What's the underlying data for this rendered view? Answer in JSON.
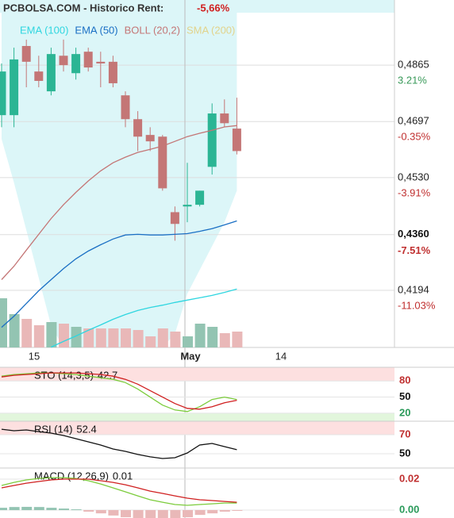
{
  "header": {
    "title": "PCBOLSA.COM - Historico Rent:",
    "rent": "-5,66%"
  },
  "chart_data": [
    {
      "type": "candlestick",
      "x_labels": [
        "15",
        "May",
        "14"
      ],
      "ylim": [
        0.4024,
        0.5059
      ],
      "yticks": [
        {
          "value": 0.4865,
          "label": "0,4865"
        },
        {
          "value": 0.4697,
          "label": "0,4697"
        },
        {
          "value": 0.453,
          "label": "0,4530"
        },
        {
          "value": 0.4194,
          "label": "0,4194"
        }
      ],
      "ytick_changes": [
        "3.21%",
        "-0.35%",
        "-3.91%",
        "-11.03%"
      ],
      "current": {
        "value": 0.436,
        "label": "0,4360",
        "change": "-7.51%"
      },
      "grid": true,
      "up_color": "#2bb594",
      "down_color": "#c47676",
      "candles": {
        "open": [
          0.4716,
          0.4716,
          0.4922,
          0.4846,
          0.4787,
          0.4893,
          0.4841,
          0.4905,
          0.4875,
          0.4875,
          0.4775,
          0.4704,
          0.4657,
          0.4652,
          0.4427,
          0.4444,
          0.4449,
          0.4562,
          0.4721,
          0.4676
        ],
        "high": [
          0.487,
          0.4917,
          0.4941,
          0.4893,
          0.4917,
          0.4941,
          0.4917,
          0.4917,
          0.4905,
          0.4893,
          0.4787,
          0.4728,
          0.468,
          0.4657,
          0.4444,
          0.4574,
          0.4491,
          0.4751,
          0.4763,
          0.4768
        ],
        "low": [
          0.468,
          0.468,
          0.4799,
          0.4799,
          0.4775,
          0.4846,
          0.4822,
          0.4846,
          0.4799,
          0.4799,
          0.468,
          0.4609,
          0.4609,
          0.4491,
          0.4342,
          0.4397,
          0.4444,
          0.4539,
          0.468,
          0.4599
        ],
        "close": [
          0.4846,
          0.4882,
          0.4875,
          0.4818,
          0.4898,
          0.4865,
          0.4898,
          0.4858,
          0.487,
          0.4811,
          0.4704,
          0.4652,
          0.4638,
          0.4498,
          0.4392,
          0.4449,
          0.4491,
          0.4721,
          0.4692,
          0.4609
        ]
      },
      "volume": [
        62,
        42,
        36,
        28,
        32,
        30,
        26,
        24,
        24,
        24,
        24,
        22,
        14,
        24,
        20,
        14,
        30,
        26,
        18,
        20
      ],
      "band_color": "#dcf6f8",
      "band": {
        "upper": [
          0.507,
          0.507,
          0.507,
          0.507,
          0.507,
          0.507,
          0.507,
          0.507,
          0.507,
          0.507,
          0.507,
          0.507,
          0.507,
          0.507,
          0.507,
          0.507,
          0.507,
          0.507,
          0.507,
          0.507
        ],
        "lower": [
          0.4645,
          0.4515,
          0.4373,
          0.4231,
          0.4089,
          0.3994,
          0.3947,
          0.3923,
          0.3923,
          0.3923,
          0.3923,
          0.3923,
          0.3947,
          0.3994,
          0.4065,
          0.4184,
          0.4255,
          0.4326,
          0.4397,
          0.4491
        ]
      },
      "series": [
        {
          "name": "EMA (100)",
          "color": "#2fd6e0",
          "values": [
            null,
            null,
            null,
            null,
            0.4025,
            0.4042,
            0.4058,
            0.4075,
            0.4091,
            0.4108,
            0.4122,
            0.4134,
            0.4143,
            0.415,
            0.4158,
            0.4165,
            0.4172,
            0.4179,
            0.4188,
            0.4198
          ]
        },
        {
          "name": "EMA (50)",
          "color": "#1a6fc4",
          "values": [
            0.4084,
            0.4117,
            0.4155,
            0.4193,
            0.4226,
            0.4259,
            0.4288,
            0.4311,
            0.433,
            0.4347,
            0.4359,
            0.4361,
            0.4359,
            0.4359,
            0.4361,
            0.4363,
            0.437,
            0.4378,
            0.4389,
            0.4401
          ]
        },
        {
          "name": "BOLL (20,2)",
          "color": "#c47676",
          "values": [
            0.4226,
            0.4266,
            0.4314,
            0.4361,
            0.4408,
            0.4449,
            0.4486,
            0.452,
            0.455,
            0.4574,
            0.4591,
            0.4605,
            0.4614,
            0.4624,
            0.4638,
            0.4652,
            0.4662,
            0.4671,
            0.4681,
            0.4685
          ]
        },
        {
          "name": "SMA (200)",
          "color": "#e2d38a",
          "values": [
            null,
            null,
            null,
            null,
            null,
            null,
            null,
            null,
            null,
            null,
            null,
            null,
            null,
            null,
            null,
            null,
            null,
            null,
            null,
            null
          ]
        }
      ]
    },
    {
      "type": "line",
      "label": "STO (14,3,5)",
      "last": 42.7,
      "ylim": [
        5,
        105.5
      ],
      "yticks": [
        80,
        50,
        20
      ],
      "high_zone": 80,
      "low_zone": 20,
      "series": [
        {
          "color": "#7ccc3c",
          "values": [
            89,
            92,
            93.5,
            95,
            95,
            93.5,
            92,
            89,
            86,
            83,
            77,
            65,
            50,
            35,
            26,
            23,
            32,
            45.5,
            50,
            45.5
          ]
        },
        {
          "color": "#d02020",
          "values": [
            87.5,
            90.5,
            92,
            93.5,
            95,
            95,
            95,
            93.5,
            92,
            89,
            83,
            74,
            62,
            50,
            38,
            29,
            27.5,
            32,
            39.5,
            44
          ]
        }
      ]
    },
    {
      "type": "line",
      "label": "RSI (14)",
      "last": 52.4,
      "ylim": [
        38.3,
        84.2
      ],
      "yticks": [
        70,
        50
      ],
      "high_zone": 70,
      "series": [
        {
          "color": "#111111",
          "values": [
            75.8,
            74.2,
            75,
            73.3,
            71.7,
            69.2,
            65.8,
            62.5,
            59.2,
            55,
            52.5,
            49.2,
            46.7,
            45,
            45.8,
            50.8,
            59.2,
            60.8,
            57.5,
            54.2
          ]
        }
      ]
    },
    {
      "type": "macd",
      "label": "MACD (12,26,9)",
      "last": 0.01,
      "ylim": [
        -0.0051,
        0.0272
      ],
      "yticks": [
        0.02,
        {
          "value": 0,
          "label": "0.00"
        }
      ],
      "series": [
        {
          "color": "#7ccc3c",
          "values": [
            0.0159,
            0.0179,
            0.0195,
            0.0205,
            0.021,
            0.021,
            0.0205,
            0.019,
            0.0169,
            0.0144,
            0.0118,
            0.0092,
            0.0067,
            0.0051,
            0.0036,
            0.0031,
            0.0036,
            0.0041,
            0.0046,
            0.0046
          ]
        },
        {
          "color": "#d02020",
          "values": [
            0.0144,
            0.0159,
            0.0174,
            0.0185,
            0.0195,
            0.02,
            0.02,
            0.02,
            0.019,
            0.0179,
            0.0164,
            0.0144,
            0.0123,
            0.0108,
            0.0092,
            0.0077,
            0.0067,
            0.0062,
            0.0056,
            0.0051
          ]
        }
      ],
      "histogram": [
        0.0015,
        0.002,
        0.0021,
        0.002,
        0.0015,
        0.001,
        0.0005,
        -0.001,
        -0.0021,
        -0.0035,
        -0.0046,
        -0.0052,
        -0.0056,
        -0.0057,
        -0.0056,
        -0.0046,
        -0.0031,
        -0.0021,
        -0.001,
        -0.0005
      ]
    }
  ]
}
